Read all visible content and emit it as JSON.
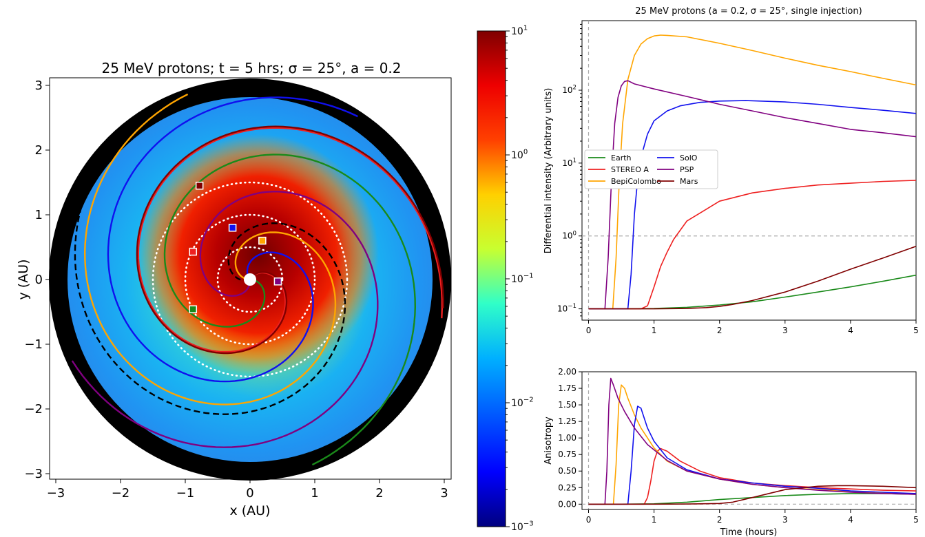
{
  "chart_data": [
    {
      "type": "heatmap",
      "title": "25 MeV protons; t = 5 hrs; σ = 25°, a = 0.2",
      "xlabel": "x (AU)",
      "ylabel": "y (AU)",
      "xlim": [
        -3.1,
        3.1
      ],
      "ylim": [
        -3.1,
        3.1
      ],
      "xticks": [
        "−3",
        "−2",
        "−1",
        "0",
        "1",
        "2",
        "3"
      ],
      "yticks": [
        "−3",
        "−2",
        "−1",
        "0",
        "1",
        "2",
        "3"
      ],
      "colorbar": {
        "scale": "log",
        "range": [
          0.001,
          10
        ],
        "tick_labels": [
          "10^1",
          "10^0",
          "10^-1",
          "10^-2",
          "10^-3"
        ],
        "colormap": "jet"
      },
      "dotted_orbit_radii_au": [
        0.5,
        1.0,
        1.5
      ],
      "outer_boundary_radius_au": 3.1,
      "spirals": [
        {
          "name": "Earth",
          "color": "#1a8a1a",
          "start_angle_deg": -150,
          "rotation_deg": 0,
          "marker": [
            -0.88,
            -0.46
          ]
        },
        {
          "name": "STEREO A",
          "color": "#ee2020",
          "start_angle_deg": -150,
          "rotation_deg": 60,
          "marker": [
            -0.88,
            0.43
          ]
        },
        {
          "name": "BepiColombo",
          "color": "#ffa500",
          "start_angle_deg": -150,
          "rotation_deg": 180,
          "marker": [
            0.19,
            0.6
          ]
        },
        {
          "name": "SolO",
          "color": "#1010ee",
          "start_angle_deg": -150,
          "rotation_deg": 128,
          "marker": [
            -0.27,
            0.8
          ]
        },
        {
          "name": "PSP",
          "color": "#800080",
          "start_angle_deg": -150,
          "rotation_deg": 276,
          "marker": [
            0.43,
            -0.03
          ]
        },
        {
          "name": "Mars",
          "color": "#800000",
          "start_angle_deg": -150,
          "rotation_deg": 63,
          "marker": [
            -0.78,
            1.45
          ]
        },
        {
          "name": "",
          "color": "#000000",
          "start_angle_deg": -150,
          "rotation_deg": 202,
          "dashed": true
        }
      ]
    },
    {
      "type": "line",
      "title": "25 MeV protons (a = 0.2, σ = 25°, single injection)",
      "xlabel": "",
      "ylabel": "Differential intensity (Arbitrary units)",
      "yscale": "log",
      "xlim": [
        -0.1,
        5
      ],
      "ylim": [
        0.07,
        900
      ],
      "xticks": [
        "0",
        "1",
        "2",
        "3",
        "4",
        "5"
      ],
      "yticks": [
        "10^-1",
        "10^0",
        "10^1",
        "10^2"
      ],
      "reference_lines": {
        "y": 1,
        "x": 0
      },
      "legend_position": "center-left",
      "series": [
        {
          "name": "Earth",
          "color": "#1a8a1a",
          "x": [
            0,
            0.5,
            1.0,
            1.5,
            2.0,
            2.5,
            3.0,
            3.5,
            4.0,
            4.5,
            5.0
          ],
          "y": [
            0.1,
            0.1,
            0.101,
            0.105,
            0.113,
            0.125,
            0.145,
            0.17,
            0.2,
            0.24,
            0.29
          ]
        },
        {
          "name": "STEREO A",
          "color": "#ee2020",
          "x": [
            0,
            0.8,
            0.9,
            1.0,
            1.1,
            1.2,
            1.3,
            1.5,
            2.0,
            2.5,
            3.0,
            3.5,
            4.0,
            4.5,
            5.0
          ],
          "y": [
            0.1,
            0.1,
            0.11,
            0.2,
            0.38,
            0.6,
            0.9,
            1.6,
            3.0,
            3.9,
            4.5,
            5.0,
            5.3,
            5.6,
            5.8
          ]
        },
        {
          "name": "BepiColombo",
          "color": "#ffa500",
          "x": [
            0,
            0.37,
            0.42,
            0.47,
            0.52,
            0.6,
            0.7,
            0.8,
            0.9,
            1.0,
            1.1,
            1.2,
            1.5,
            2.0,
            2.5,
            3.0,
            3.5,
            4.0,
            4.5,
            5.0
          ],
          "y": [
            0.1,
            0.1,
            0.5,
            6,
            35,
            140,
            300,
            430,
            510,
            555,
            570,
            565,
            540,
            440,
            350,
            275,
            220,
            180,
            145,
            118
          ]
        },
        {
          "name": "SolO",
          "color": "#1010ee",
          "x": [
            0,
            0.6,
            0.65,
            0.7,
            0.75,
            0.8,
            0.9,
            1.0,
            1.2,
            1.4,
            1.7,
            2.0,
            2.4,
            3.0,
            3.5,
            4.0,
            4.5,
            5.0
          ],
          "y": [
            0.1,
            0.1,
            0.3,
            2,
            6,
            12,
            25,
            38,
            52,
            61,
            68,
            71,
            72,
            69,
            64,
            58,
            53,
            48
          ]
        },
        {
          "name": "PSP",
          "color": "#800080",
          "x": [
            0,
            0.25,
            0.3,
            0.35,
            0.4,
            0.45,
            0.5,
            0.55,
            0.6,
            0.7,
            1.0,
            1.5,
            2.0,
            2.5,
            3.0,
            3.5,
            4.0,
            4.5,
            5.0
          ],
          "y": [
            0.1,
            0.1,
            0.5,
            6,
            35,
            80,
            115,
            132,
            135,
            122,
            104,
            82,
            64,
            52,
            42,
            35,
            29,
            26,
            23
          ]
        },
        {
          "name": "Mars",
          "color": "#800000",
          "x": [
            0,
            1.0,
            1.5,
            1.8,
            2.0,
            2.2,
            2.5,
            3.0,
            3.5,
            4.0,
            4.5,
            5.0
          ],
          "y": [
            0.1,
            0.1,
            0.101,
            0.104,
            0.108,
            0.115,
            0.13,
            0.17,
            0.24,
            0.35,
            0.5,
            0.72
          ]
        }
      ]
    },
    {
      "type": "line",
      "title": "",
      "xlabel": "Time (hours)",
      "ylabel": "Anisotropy",
      "xlim": [
        -0.1,
        5
      ],
      "ylim": [
        -0.08,
        2.0
      ],
      "xticks": [
        "0",
        "1",
        "2",
        "3",
        "4",
        "5"
      ],
      "yticks": [
        "0.00",
        "0.25",
        "0.50",
        "0.75",
        "1.00",
        "1.25",
        "1.50",
        "1.75",
        "2.00"
      ],
      "reference_lines": {
        "y": 0,
        "x": 0
      },
      "series": [
        {
          "name": "Earth",
          "color": "#1a8a1a",
          "x": [
            0,
            0.5,
            1.0,
            1.5,
            2.0,
            2.5,
            3.0,
            3.5,
            4.0,
            4.5,
            5.0
          ],
          "y": [
            0,
            0,
            0.005,
            0.03,
            0.07,
            0.1,
            0.13,
            0.15,
            0.16,
            0.16,
            0.15
          ]
        },
        {
          "name": "STEREO A",
          "color": "#ee2020",
          "x": [
            0,
            0.85,
            0.9,
            0.95,
            1.0,
            1.05,
            1.1,
            1.2,
            1.4,
            1.7,
            2.0,
            2.5,
            3.0,
            3.5,
            4.0,
            4.5,
            5.0
          ],
          "y": [
            0,
            0,
            0.1,
            0.35,
            0.65,
            0.8,
            0.84,
            0.8,
            0.65,
            0.5,
            0.4,
            0.32,
            0.28,
            0.25,
            0.23,
            0.21,
            0.2
          ]
        },
        {
          "name": "BepiColombo",
          "color": "#ffa500",
          "x": [
            0,
            0.38,
            0.42,
            0.46,
            0.5,
            0.55,
            0.6,
            0.7,
            0.8,
            1.0,
            1.2,
            1.5,
            2.0,
            2.5,
            3.0,
            3.5,
            4.0,
            4.5,
            5.0
          ],
          "y": [
            0,
            0,
            0.6,
            1.5,
            1.8,
            1.75,
            1.6,
            1.35,
            1.15,
            0.85,
            0.65,
            0.5,
            0.38,
            0.3,
            0.25,
            0.22,
            0.19,
            0.17,
            0.16
          ]
        },
        {
          "name": "SolO",
          "color": "#1010ee",
          "x": [
            0,
            0.6,
            0.65,
            0.7,
            0.75,
            0.8,
            0.85,
            0.9,
            1.0,
            1.2,
            1.5,
            2.0,
            2.5,
            3.0,
            3.5,
            4.0,
            4.5,
            5.0
          ],
          "y": [
            0,
            0,
            0.5,
            1.2,
            1.48,
            1.45,
            1.3,
            1.15,
            0.95,
            0.7,
            0.52,
            0.38,
            0.32,
            0.27,
            0.24,
            0.2,
            0.18,
            0.16
          ]
        },
        {
          "name": "PSP",
          "color": "#800080",
          "x": [
            0,
            0.25,
            0.28,
            0.31,
            0.34,
            0.38,
            0.45,
            0.55,
            0.7,
            0.9,
            1.2,
            1.5,
            2.0,
            2.5,
            3.0,
            3.5,
            4.0,
            4.5,
            5.0
          ],
          "y": [
            0,
            0,
            0.5,
            1.5,
            1.9,
            1.8,
            1.6,
            1.4,
            1.15,
            0.9,
            0.66,
            0.5,
            0.38,
            0.3,
            0.25,
            0.21,
            0.18,
            0.16,
            0.15
          ]
        },
        {
          "name": "Mars",
          "color": "#800000",
          "x": [
            0,
            1.0,
            1.5,
            2.0,
            2.2,
            2.5,
            3.0,
            3.5,
            3.8,
            4.0,
            4.5,
            5.0
          ],
          "y": [
            0,
            0,
            0.002,
            0.01,
            0.03,
            0.1,
            0.22,
            0.27,
            0.28,
            0.28,
            0.27,
            0.25
          ]
        }
      ]
    }
  ]
}
